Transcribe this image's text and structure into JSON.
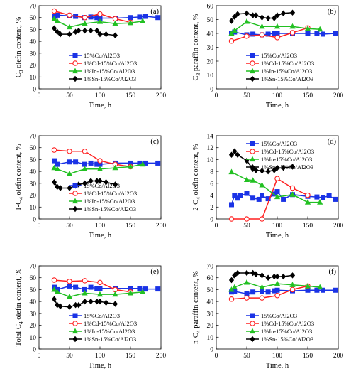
{
  "figure": {
    "series_styles": [
      {
        "color": "#1a33e6",
        "marker": "square",
        "fill": "#1a33e6"
      },
      {
        "color": "#ff2020",
        "marker": "circle",
        "fill": "#ffffff"
      },
      {
        "color": "#22c022",
        "marker": "triangle",
        "fill": "#22c022"
      },
      {
        "color": "#000000",
        "marker": "diamond",
        "fill": "#000000"
      }
    ]
  },
  "chart_data": [
    {
      "type": "line",
      "panel": "(a)",
      "xlabel": "Time, h",
      "ylabel_main": "C",
      "ylabel_sub": "3",
      "ylabel_rest": " olefin content, %",
      "xlim": [
        0,
        200
      ],
      "ylim": [
        0,
        70
      ],
      "xticks": [
        0,
        50,
        100,
        150,
        200
      ],
      "yticks": [
        0,
        10,
        20,
        30,
        40,
        50,
        60,
        70
      ],
      "legend_position": "bottom",
      "series": [
        {
          "name": "15%Co/Al2O3",
          "x": [
            25,
            30,
            50,
            60,
            75,
            85,
            95,
            100,
            125,
            150,
            165,
            175,
            195
          ],
          "y": [
            61,
            62,
            61.5,
            61,
            60,
            60.5,
            60,
            59.5,
            59.5,
            60,
            60.5,
            61,
            60
          ]
        },
        {
          "name": "1%Cd-15%Co/Al2O3",
          "x": [
            25,
            50,
            75,
            100,
            125,
            150
          ],
          "y": [
            65.5,
            62,
            60,
            63,
            59,
            56
          ]
        },
        {
          "name": "1%In-15%Co/Al2O3",
          "x": [
            25,
            30,
            50,
            75,
            100,
            125,
            150,
            170
          ],
          "y": [
            59,
            57,
            52,
            55,
            56.5,
            55,
            55.5,
            57
          ]
        },
        {
          "name": "1%Sn-15%Co/Al2O3",
          "x": [
            25,
            30,
            35,
            50,
            60,
            65,
            75,
            85,
            95,
            100,
            110,
            125
          ],
          "y": [
            51,
            48,
            46,
            46,
            48,
            49,
            49,
            49,
            49,
            46,
            46,
            45
          ]
        }
      ]
    },
    {
      "type": "line",
      "panel": "(b)",
      "xlabel": "Time, h",
      "ylabel_main": "C",
      "ylabel_sub": "3",
      "ylabel_rest": " paraffin content, %",
      "xlim": [
        0,
        200
      ],
      "ylim": [
        0,
        60
      ],
      "xticks": [
        0,
        50,
        100,
        150,
        200
      ],
      "yticks": [
        0,
        10,
        20,
        30,
        40,
        50,
        60
      ],
      "legend_position": "bottom",
      "series": [
        {
          "name": "15%Co/Al2O3",
          "x": [
            25,
            30,
            50,
            60,
            75,
            85,
            95,
            100,
            125,
            150,
            165,
            175,
            195
          ],
          "y": [
            40,
            41,
            39,
            39.5,
            39,
            39.5,
            40,
            40,
            40,
            40,
            40,
            39.5,
            40
          ]
        },
        {
          "name": "1%Cd-15%Co/Al2O3",
          "x": [
            25,
            50,
            75,
            100,
            125,
            150
          ],
          "y": [
            34.5,
            38,
            39,
            37,
            40.5,
            44
          ]
        },
        {
          "name": "1%In-15%Co/Al2O3",
          "x": [
            25,
            30,
            50,
            75,
            100,
            125,
            150,
            170
          ],
          "y": [
            40,
            42,
            48.5,
            45,
            45,
            45,
            43.5,
            43
          ]
        },
        {
          "name": "1%Sn-15%Co/Al2O3",
          "x": [
            25,
            30,
            35,
            50,
            60,
            65,
            75,
            85,
            95,
            100,
            110,
            125
          ],
          "y": [
            49,
            52,
            54,
            54.5,
            53,
            53,
            51.5,
            51,
            51,
            53,
            54.5,
            55
          ]
        }
      ]
    },
    {
      "type": "line",
      "panel": "(c)",
      "xlabel": "Time, h",
      "ylabel_main": "1-C",
      "ylabel_sub": "4",
      "ylabel_rest": " olefin content, %",
      "xlim": [
        0,
        200
      ],
      "ylim": [
        0,
        70
      ],
      "xticks": [
        0,
        50,
        100,
        150,
        200
      ],
      "yticks": [
        0,
        10,
        20,
        30,
        40,
        50,
        60,
        70
      ],
      "legend_position": "bottom",
      "series": [
        {
          "name": "15%Co/Al2O3",
          "x": [
            25,
            30,
            50,
            60,
            75,
            85,
            95,
            100,
            125,
            150,
            165,
            175,
            195
          ],
          "y": [
            49,
            46,
            48,
            48,
            46,
            47,
            46,
            46,
            47,
            47,
            47,
            47,
            47
          ]
        },
        {
          "name": "1%Cd-15%Co/Al2O3",
          "x": [
            25,
            50,
            75,
            100,
            125,
            150
          ],
          "y": [
            58,
            57,
            57,
            49,
            46,
            44
          ]
        },
        {
          "name": "1%In-15%Co/Al2O3",
          "x": [
            25,
            30,
            50,
            75,
            100,
            125,
            150,
            170
          ],
          "y": [
            43,
            42,
            38,
            42,
            42,
            43,
            44,
            46
          ]
        },
        {
          "name": "1%Sn-15%Co/Al2O3",
          "x": [
            25,
            30,
            35,
            50,
            60,
            65,
            75,
            85,
            95,
            100,
            110,
            125
          ],
          "y": [
            31,
            27,
            26,
            26,
            28,
            29,
            30,
            32,
            32,
            32,
            31,
            29
          ]
        }
      ]
    },
    {
      "type": "line",
      "panel": "(d)",
      "xlabel": "Time, h",
      "ylabel_main": "2-C",
      "ylabel_sub": "4",
      "ylabel_rest": " olefin content, %",
      "xlim": [
        0,
        200
      ],
      "ylim": [
        0,
        14
      ],
      "xticks": [
        0,
        50,
        100,
        150,
        200
      ],
      "yticks": [
        0,
        2,
        4,
        6,
        8,
        10,
        12,
        14
      ],
      "legend_position": "top",
      "series": [
        {
          "name": "15%Co/Al2O3",
          "x": [
            25,
            30,
            35,
            40,
            50,
            60,
            70,
            75,
            85,
            95,
            100,
            110,
            125,
            150,
            165,
            175,
            185,
            195
          ],
          "y": [
            2.4,
            4.0,
            3.5,
            3.9,
            4.3,
            3.5,
            3.3,
            3.9,
            3.4,
            4.2,
            4.6,
            3.3,
            4.1,
            3.8,
            3.7,
            3.6,
            3.9,
            3.3
          ]
        },
        {
          "name": "1%Cd-15%Co/Al2O3",
          "x": [
            25,
            50,
            75,
            100,
            125,
            150
          ],
          "y": [
            0,
            0,
            0,
            6.8,
            5.2,
            4.0
          ]
        },
        {
          "name": "1%In-15%Co/Al2O3",
          "x": [
            25,
            50,
            60,
            75,
            100,
            125,
            150,
            170
          ],
          "y": [
            7.9,
            6.6,
            6.5,
            5.7,
            3.7,
            4.1,
            2.8,
            2.8
          ]
        },
        {
          "name": "1%Sn-15%Co/Al2O3",
          "x": [
            25,
            30,
            35,
            50,
            60,
            65,
            75,
            85,
            95,
            100,
            110,
            125
          ],
          "y": [
            10.8,
            11.4,
            10.8,
            9.8,
            8.4,
            8.2,
            8.1,
            8.0,
            8.2,
            8.6,
            8.6,
            8.8
          ]
        }
      ]
    },
    {
      "type": "line",
      "panel": "(e)",
      "xlabel": "Time, h",
      "ylabel_main": "Total C",
      "ylabel_sub": "4",
      "ylabel_rest": " olefin content, %",
      "xlim": [
        0,
        200
      ],
      "ylim": [
        0,
        70
      ],
      "xticks": [
        0,
        50,
        100,
        150,
        200
      ],
      "yticks": [
        0,
        10,
        20,
        30,
        40,
        50,
        60,
        70
      ],
      "legend_position": "bottom",
      "series": [
        {
          "name": "15%Co/Al2O3",
          "x": [
            25,
            30,
            50,
            60,
            75,
            85,
            95,
            100,
            125,
            150,
            165,
            175,
            195
          ],
          "y": [
            52,
            50,
            53,
            52,
            50,
            52,
            51,
            51,
            51,
            51,
            51,
            50.5,
            50.5
          ]
        },
        {
          "name": "1%Cd-15%Co/Al2O3",
          "x": [
            25,
            50,
            75,
            100,
            125,
            150
          ],
          "y": [
            58,
            57,
            57.5,
            56,
            50,
            48
          ]
        },
        {
          "name": "1%In-15%Co/Al2O3",
          "x": [
            25,
            30,
            50,
            75,
            100,
            125,
            150,
            170
          ],
          "y": [
            50,
            48,
            44,
            47,
            46,
            46,
            47,
            48
          ]
        },
        {
          "name": "1%Sn-15%Co/Al2O3",
          "x": [
            25,
            30,
            35,
            50,
            60,
            65,
            75,
            85,
            95,
            100,
            110,
            125
          ],
          "y": [
            42,
            37,
            36,
            35.5,
            37,
            37,
            40,
            40,
            40,
            40,
            39,
            38
          ]
        }
      ]
    },
    {
      "type": "line",
      "panel": "(f)",
      "xlabel": "Time, h",
      "ylabel_main": "n-C",
      "ylabel_sub": "4",
      "ylabel_rest": " paraffin content, %",
      "xlim": [
        0,
        200
      ],
      "ylim": [
        0,
        70
      ],
      "xticks": [
        0,
        50,
        100,
        150,
        200
      ],
      "yticks": [
        0,
        10,
        20,
        30,
        40,
        50,
        60,
        70
      ],
      "legend_position": "bottom",
      "series": [
        {
          "name": "15%Co/Al2O3",
          "x": [
            25,
            30,
            50,
            60,
            75,
            85,
            95,
            100,
            125,
            150,
            165,
            175,
            195
          ],
          "y": [
            48,
            48.5,
            46.5,
            48,
            48.5,
            48,
            49,
            49.5,
            49,
            49.5,
            49.5,
            49.5,
            49.5
          ]
        },
        {
          "name": "1%Cd-15%Co/Al2O3",
          "x": [
            25,
            50,
            75,
            100,
            125,
            150
          ],
          "y": [
            42,
            43,
            43,
            45,
            50,
            53
          ]
        },
        {
          "name": "1%In-15%Co/Al2O3",
          "x": [
            25,
            30,
            50,
            75,
            100,
            125,
            150,
            170
          ],
          "y": [
            50,
            52,
            56,
            52,
            55,
            54,
            53,
            52
          ]
        },
        {
          "name": "1%Sn-15%Co/Al2O3",
          "x": [
            25,
            30,
            35,
            50,
            60,
            65,
            75,
            85,
            95,
            100,
            110,
            125
          ],
          "y": [
            58,
            62,
            64,
            64,
            64,
            63,
            62,
            60,
            61,
            61,
            61,
            62
          ]
        }
      ]
    }
  ]
}
